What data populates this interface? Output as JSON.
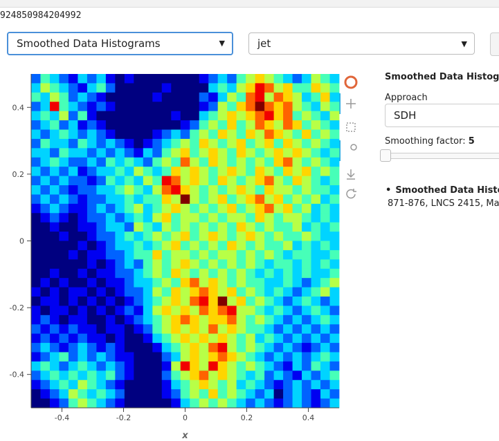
{
  "header": {
    "text": "924850984204992"
  },
  "controls": {
    "method": "Smoothed Data Histograms",
    "colormap": "jet"
  },
  "sidebar": {
    "title": "Smoothed Data Histogram",
    "approach_label": "Approach",
    "approach_value": "SDH",
    "smoothing_label": "Smoothing factor:",
    "smoothing_value": 5,
    "reference_title": "Smoothed Data Histogr",
    "reference_text": "871-876, LNCS 2415, Ma"
  },
  "chart_data": {
    "type": "heatmap",
    "x_label": "x",
    "xlim": [
      -0.5,
      0.5
    ],
    "ylim": [
      -0.5,
      0.5
    ],
    "xticks": [
      -0.4,
      -0.2,
      0,
      0.2,
      0.4
    ],
    "yticks": [
      -0.4,
      -0.2,
      0,
      0.2,
      0.4
    ],
    "z": [
      [
        2,
        4,
        3,
        2,
        1,
        3,
        2,
        3,
        1,
        0,
        1,
        0,
        0,
        0,
        0,
        0,
        0,
        0,
        1,
        2,
        3,
        2,
        4,
        5,
        6,
        5,
        4,
        3,
        2,
        3,
        5,
        4,
        3
      ],
      [
        3,
        5,
        4,
        3,
        2,
        1,
        3,
        4,
        2,
        0,
        0,
        0,
        0,
        0,
        1,
        0,
        0,
        0,
        0,
        3,
        4,
        3,
        5,
        6,
        8,
        7,
        5,
        6,
        4,
        4,
        6,
        5,
        4
      ],
      [
        4,
        3,
        5,
        4,
        2,
        3,
        2,
        1,
        0,
        0,
        0,
        0,
        0,
        1,
        0,
        0,
        0,
        0,
        2,
        1,
        3,
        5,
        4,
        7,
        8,
        5,
        7,
        6,
        5,
        3,
        4,
        6,
        3
      ],
      [
        2,
        3,
        8,
        4,
        3,
        2,
        1,
        2,
        1,
        0,
        0,
        0,
        0,
        0,
        0,
        0,
        0,
        0,
        1,
        2,
        5,
        4,
        6,
        7,
        9,
        7,
        6,
        7,
        5,
        4,
        3,
        5,
        4
      ],
      [
        3,
        4,
        3,
        5,
        2,
        4,
        1,
        0,
        0,
        0,
        0,
        0,
        0,
        0,
        0,
        1,
        0,
        0,
        3,
        4,
        5,
        6,
        5,
        6,
        7,
        8,
        6,
        7,
        4,
        5,
        4,
        3,
        5
      ],
      [
        2,
        3,
        4,
        2,
        3,
        1,
        2,
        1,
        0,
        0,
        0,
        0,
        0,
        0,
        0,
        0,
        1,
        2,
        4,
        5,
        4,
        6,
        4,
        5,
        7,
        6,
        5,
        7,
        6,
        4,
        5,
        4,
        3
      ],
      [
        3,
        2,
        3,
        4,
        3,
        2,
        3,
        2,
        1,
        0,
        0,
        0,
        0,
        1,
        2,
        3,
        2,
        4,
        5,
        4,
        6,
        5,
        4,
        6,
        5,
        7,
        6,
        5,
        4,
        6,
        4,
        5,
        4
      ],
      [
        2,
        4,
        3,
        3,
        2,
        4,
        3,
        2,
        3,
        2,
        1,
        0,
        1,
        2,
        3,
        4,
        5,
        4,
        6,
        5,
        4,
        5,
        6,
        4,
        5,
        6,
        4,
        6,
        5,
        4,
        5,
        4,
        3
      ],
      [
        3,
        3,
        2,
        4,
        3,
        3,
        2,
        3,
        2,
        3,
        2,
        1,
        3,
        2,
        4,
        5,
        6,
        4,
        5,
        6,
        5,
        4,
        6,
        5,
        4,
        5,
        6,
        5,
        6,
        5,
        4,
        3,
        4
      ],
      [
        2,
        3,
        4,
        3,
        2,
        2,
        3,
        2,
        4,
        3,
        4,
        3,
        2,
        4,
        5,
        4,
        7,
        5,
        4,
        6,
        5,
        4,
        5,
        4,
        5,
        4,
        6,
        7,
        5,
        4,
        5,
        4,
        3
      ],
      [
        3,
        2,
        3,
        2,
        3,
        1,
        2,
        3,
        3,
        4,
        3,
        5,
        4,
        3,
        4,
        6,
        5,
        6,
        5,
        4,
        5,
        6,
        5,
        4,
        6,
        5,
        4,
        6,
        5,
        6,
        4,
        5,
        4
      ],
      [
        2,
        3,
        2,
        3,
        2,
        2,
        1,
        2,
        4,
        3,
        4,
        3,
        5,
        4,
        8,
        7,
        5,
        6,
        5,
        4,
        6,
        5,
        4,
        5,
        6,
        7,
        5,
        4,
        6,
        5,
        4,
        3,
        4
      ],
      [
        3,
        2,
        3,
        2,
        1,
        2,
        2,
        3,
        3,
        4,
        5,
        4,
        3,
        5,
        7,
        8,
        6,
        5,
        4,
        5,
        4,
        5,
        6,
        5,
        4,
        6,
        5,
        5,
        4,
        5,
        4,
        4,
        3
      ],
      [
        2,
        3,
        2,
        3,
        2,
        1,
        2,
        2,
        3,
        3,
        4,
        3,
        4,
        4,
        6,
        5,
        9,
        5,
        4,
        5,
        6,
        4,
        5,
        6,
        7,
        5,
        6,
        4,
        5,
        4,
        5,
        3,
        4
      ],
      [
        1,
        2,
        3,
        2,
        1,
        1,
        2,
        3,
        2,
        3,
        4,
        5,
        3,
        4,
        5,
        6,
        5,
        4,
        5,
        4,
        5,
        6,
        4,
        5,
        6,
        7,
        5,
        6,
        4,
        5,
        3,
        4,
        3
      ],
      [
        0,
        1,
        2,
        1,
        0,
        1,
        2,
        2,
        3,
        2,
        3,
        4,
        3,
        5,
        6,
        4,
        5,
        5,
        4,
        5,
        4,
        5,
        5,
        4,
        6,
        5,
        4,
        5,
        5,
        4,
        3,
        4,
        3
      ],
      [
        0,
        0,
        1,
        0,
        0,
        1,
        1,
        2,
        3,
        3,
        2,
        5,
        4,
        3,
        5,
        4,
        5,
        4,
        5,
        4,
        5,
        4,
        6,
        5,
        4,
        5,
        4,
        4,
        5,
        3,
        4,
        3,
        4
      ],
      [
        0,
        0,
        0,
        1,
        0,
        0,
        1,
        2,
        2,
        3,
        4,
        3,
        4,
        5,
        4,
        5,
        6,
        4,
        5,
        6,
        5,
        4,
        5,
        6,
        5,
        4,
        5,
        4,
        4,
        5,
        4,
        3,
        3
      ],
      [
        0,
        0,
        0,
        0,
        0,
        1,
        0,
        1,
        2,
        3,
        3,
        4,
        3,
        4,
        5,
        6,
        4,
        5,
        4,
        5,
        4,
        6,
        5,
        4,
        5,
        4,
        4,
        5,
        3,
        4,
        3,
        4,
        3
      ],
      [
        0,
        0,
        0,
        0,
        1,
        0,
        1,
        1,
        2,
        2,
        3,
        4,
        4,
        6,
        4,
        5,
        5,
        4,
        5,
        4,
        5,
        5,
        4,
        5,
        4,
        5,
        4,
        3,
        4,
        4,
        3,
        3,
        4
      ],
      [
        0,
        0,
        0,
        0,
        0,
        0,
        1,
        0,
        1,
        2,
        3,
        2,
        4,
        5,
        4,
        5,
        6,
        5,
        4,
        5,
        4,
        5,
        4,
        5,
        4,
        3,
        4,
        4,
        3,
        4,
        3,
        4,
        3
      ],
      [
        0,
        0,
        1,
        0,
        0,
        1,
        0,
        1,
        1,
        2,
        2,
        3,
        4,
        5,
        4,
        6,
        5,
        4,
        5,
        4,
        5,
        4,
        5,
        4,
        3,
        4,
        3,
        4,
        3,
        4,
        3,
        3,
        4
      ],
      [
        0,
        1,
        0,
        1,
        0,
        0,
        1,
        0,
        1,
        1,
        2,
        3,
        3,
        4,
        5,
        4,
        6,
        7,
        5,
        6,
        5,
        4,
        5,
        4,
        4,
        3,
        3,
        4,
        3,
        2,
        3,
        4,
        5
      ],
      [
        1,
        0,
        1,
        0,
        1,
        1,
        0,
        1,
        0,
        1,
        2,
        2,
        3,
        5,
        4,
        6,
        5,
        6,
        7,
        6,
        5,
        6,
        4,
        5,
        4,
        3,
        4,
        3,
        2,
        3,
        4,
        5,
        3
      ],
      [
        0,
        1,
        1,
        0,
        1,
        0,
        1,
        0,
        1,
        0,
        1,
        2,
        3,
        4,
        5,
        6,
        5,
        7,
        8,
        6,
        9,
        5,
        6,
        4,
        5,
        4,
        3,
        2,
        3,
        4,
        3,
        2,
        3
      ],
      [
        1,
        0,
        1,
        1,
        0,
        1,
        0,
        1,
        0,
        1,
        2,
        1,
        3,
        5,
        6,
        5,
        6,
        5,
        7,
        6,
        7,
        8,
        5,
        5,
        4,
        3,
        4,
        3,
        2,
        3,
        4,
        3,
        2
      ],
      [
        1,
        2,
        1,
        0,
        1,
        1,
        0,
        0,
        1,
        0,
        1,
        2,
        3,
        4,
        5,
        6,
        7,
        6,
        5,
        6,
        6,
        7,
        5,
        4,
        5,
        4,
        3,
        2,
        3,
        2,
        3,
        4,
        3
      ],
      [
        2,
        1,
        2,
        1,
        2,
        1,
        1,
        0,
        1,
        1,
        0,
        1,
        2,
        4,
        5,
        6,
        5,
        6,
        5,
        7,
        5,
        6,
        5,
        4,
        4,
        3,
        2,
        3,
        2,
        3,
        2,
        3,
        2
      ],
      [
        1,
        2,
        1,
        2,
        1,
        2,
        1,
        1,
        0,
        1,
        0,
        0,
        1,
        3,
        4,
        5,
        6,
        5,
        6,
        5,
        6,
        5,
        4,
        5,
        3,
        4,
        3,
        2,
        3,
        2,
        3,
        2,
        3
      ],
      [
        2,
        3,
        2,
        1,
        2,
        3,
        2,
        1,
        2,
        1,
        0,
        0,
        0,
        1,
        3,
        4,
        5,
        6,
        5,
        7,
        8,
        5,
        4,
        5,
        4,
        3,
        2,
        3,
        2,
        1,
        2,
        3,
        2
      ],
      [
        1,
        2,
        3,
        4,
        2,
        3,
        2,
        3,
        2,
        1,
        1,
        0,
        0,
        0,
        2,
        3,
        5,
        6,
        5,
        6,
        7,
        6,
        5,
        4,
        3,
        2,
        3,
        2,
        3,
        2,
        3,
        4,
        3
      ],
      [
        3,
        4,
        3,
        2,
        3,
        4,
        3,
        2,
        3,
        2,
        1,
        0,
        0,
        0,
        1,
        5,
        8,
        6,
        5,
        8,
        6,
        5,
        4,
        5,
        4,
        3,
        2,
        1,
        3,
        2,
        4,
        3,
        2
      ],
      [
        2,
        3,
        4,
        3,
        4,
        3,
        4,
        3,
        4,
        2,
        1,
        0,
        0,
        0,
        2,
        4,
        5,
        6,
        7,
        5,
        6,
        5,
        4,
        3,
        4,
        2,
        3,
        2,
        1,
        3,
        2,
        3,
        4
      ],
      [
        1,
        2,
        3,
        4,
        3,
        5,
        4,
        3,
        2,
        1,
        0,
        0,
        0,
        0,
        1,
        3,
        4,
        5,
        6,
        5,
        4,
        5,
        3,
        4,
        3,
        2,
        1,
        2,
        3,
        2,
        3,
        2,
        3
      ],
      [
        0,
        1,
        2,
        3,
        5,
        4,
        3,
        4,
        3,
        2,
        0,
        0,
        0,
        0,
        1,
        2,
        4,
        5,
        4,
        6,
        4,
        5,
        4,
        3,
        2,
        3,
        0,
        2,
        3,
        2,
        1,
        3,
        2
      ],
      [
        0,
        0,
        1,
        2,
        4,
        5,
        4,
        3,
        2,
        1,
        0,
        0,
        0,
        0,
        0,
        1,
        3,
        4,
        5,
        4,
        5,
        4,
        3,
        2,
        3,
        2,
        1,
        2,
        3,
        2,
        1,
        2,
        3
      ]
    ]
  }
}
